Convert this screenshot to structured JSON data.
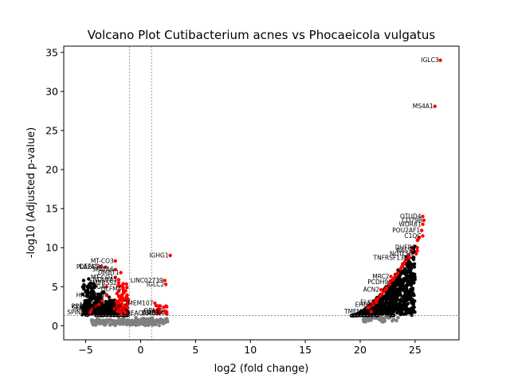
{
  "chart_data": {
    "type": "scatter",
    "title": "Volcano Plot Cutibacterium acnes vs Phocaeicola vulgatus",
    "xlabel": "log2 (fold change)",
    "ylabel": "-log10 (Adjusted p-value)",
    "xlim": [
      -7,
      29
    ],
    "ylim": [
      -1.8,
      35.8
    ],
    "xticks": [
      -5,
      0,
      5,
      10,
      15,
      20,
      25
    ],
    "yticks": [
      0,
      5,
      10,
      15,
      20,
      25,
      30,
      35
    ],
    "grid": false,
    "thresholds": {
      "log2fc": [
        -1,
        1
      ],
      "neg_log10_p": 1.3
    },
    "colors": {
      "significant": "#ff0000",
      "not_significant": "#808080",
      "dense": "#000000",
      "threshold_line": "#808080"
    },
    "labeled_points": [
      {
        "label": "IGLC3",
        "x": 27.3,
        "y": 34.0
      },
      {
        "label": "MS4A1",
        "x": 26.8,
        "y": 28.1
      },
      {
        "label": "OTUD4",
        "x": 25.7,
        "y": 14.0
      },
      {
        "label": "CD79B",
        "x": 25.8,
        "y": 13.5
      },
      {
        "label": "WDR81",
        "x": 25.7,
        "y": 13.0
      },
      {
        "label": "POU2AF1",
        "x": 25.6,
        "y": 12.2
      },
      {
        "label": "C1QC",
        "x": 25.7,
        "y": 11.5
      },
      {
        "label": "DHFR2",
        "x": 25.2,
        "y": 10.0
      },
      {
        "label": "RASS1",
        "x": 25.2,
        "y": 9.6
      },
      {
        "label": "NOTCH2",
        "x": 25.1,
        "y": 9.2
      },
      {
        "label": "TNFRSF13B",
        "x": 24.5,
        "y": 8.7
      },
      {
        "label": "PCDH9",
        "x": 22.7,
        "y": 5.6
      },
      {
        "label": "MRC2",
        "x": 22.8,
        "y": 6.3
      },
      {
        "label": "ACN2",
        "x": 21.9,
        "y": 4.6
      },
      {
        "label": "ELK3",
        "x": 21.5,
        "y": 3.0
      },
      {
        "label": "EHD4",
        "x": 21.2,
        "y": 2.7
      },
      {
        "label": "TMEM23",
        "x": 21.0,
        "y": 1.8
      },
      {
        "label": "IGHG1",
        "x": 2.7,
        "y": 9.0
      },
      {
        "label": "MT-CO3",
        "x": -2.3,
        "y": 8.3
      },
      {
        "label": "DEFA5",
        "x": -3.7,
        "y": 7.6
      },
      {
        "label": "PLA2G2A",
        "x": -3.2,
        "y": 7.5
      },
      {
        "label": "SPATA6",
        "x": -2.3,
        "y": 7.2
      },
      {
        "label": "DMBT1",
        "x": -1.8,
        "y": 6.8
      },
      {
        "label": "MT-CO1",
        "x": -2.3,
        "y": 6.2
      },
      {
        "label": "NDUFA5",
        "x": -2.0,
        "y": 5.9
      },
      {
        "label": "TMPRSS2",
        "x": -2.0,
        "y": 5.5
      },
      {
        "label": "REG4",
        "x": -3.1,
        "y": 5.0
      },
      {
        "label": "OLFM4",
        "x": -1.6,
        "y": 4.7
      },
      {
        "label": "HNRNPA1",
        "x": -3.1,
        "y": 3.9
      },
      {
        "label": "LINC02739",
        "x": 2.2,
        "y": 5.8
      },
      {
        "label": "IGLC2",
        "x": 2.3,
        "y": 5.3
      },
      {
        "label": "TMEM107",
        "x": 1.3,
        "y": 2.9
      },
      {
        "label": "PIGR",
        "x": -3.5,
        "y": 3.2
      },
      {
        "label": "MUC2",
        "x": -3.8,
        "y": 2.7
      },
      {
        "label": "SPINK4",
        "x": -4.6,
        "y": 1.7
      },
      {
        "label": "RPL13A",
        "x": -4.1,
        "y": 2.5
      },
      {
        "label": "CLCA1",
        "x": -4.3,
        "y": 2.4
      },
      {
        "label": "TFF3",
        "x": -4.5,
        "y": 2.0
      },
      {
        "label": "FCGBP",
        "x": -2.4,
        "y": 2.2
      },
      {
        "label": "S100P",
        "x": -1.6,
        "y": 2.4
      },
      {
        "label": "GPA33",
        "x": 2.2,
        "y": 1.9
      },
      {
        "label": "CD74",
        "x": 1.8,
        "y": 1.7
      },
      {
        "label": "CEACAM5",
        "x": 1.5,
        "y": 1.6
      },
      {
        "label": "LGALS4",
        "x": 2.3,
        "y": 1.6
      }
    ]
  }
}
